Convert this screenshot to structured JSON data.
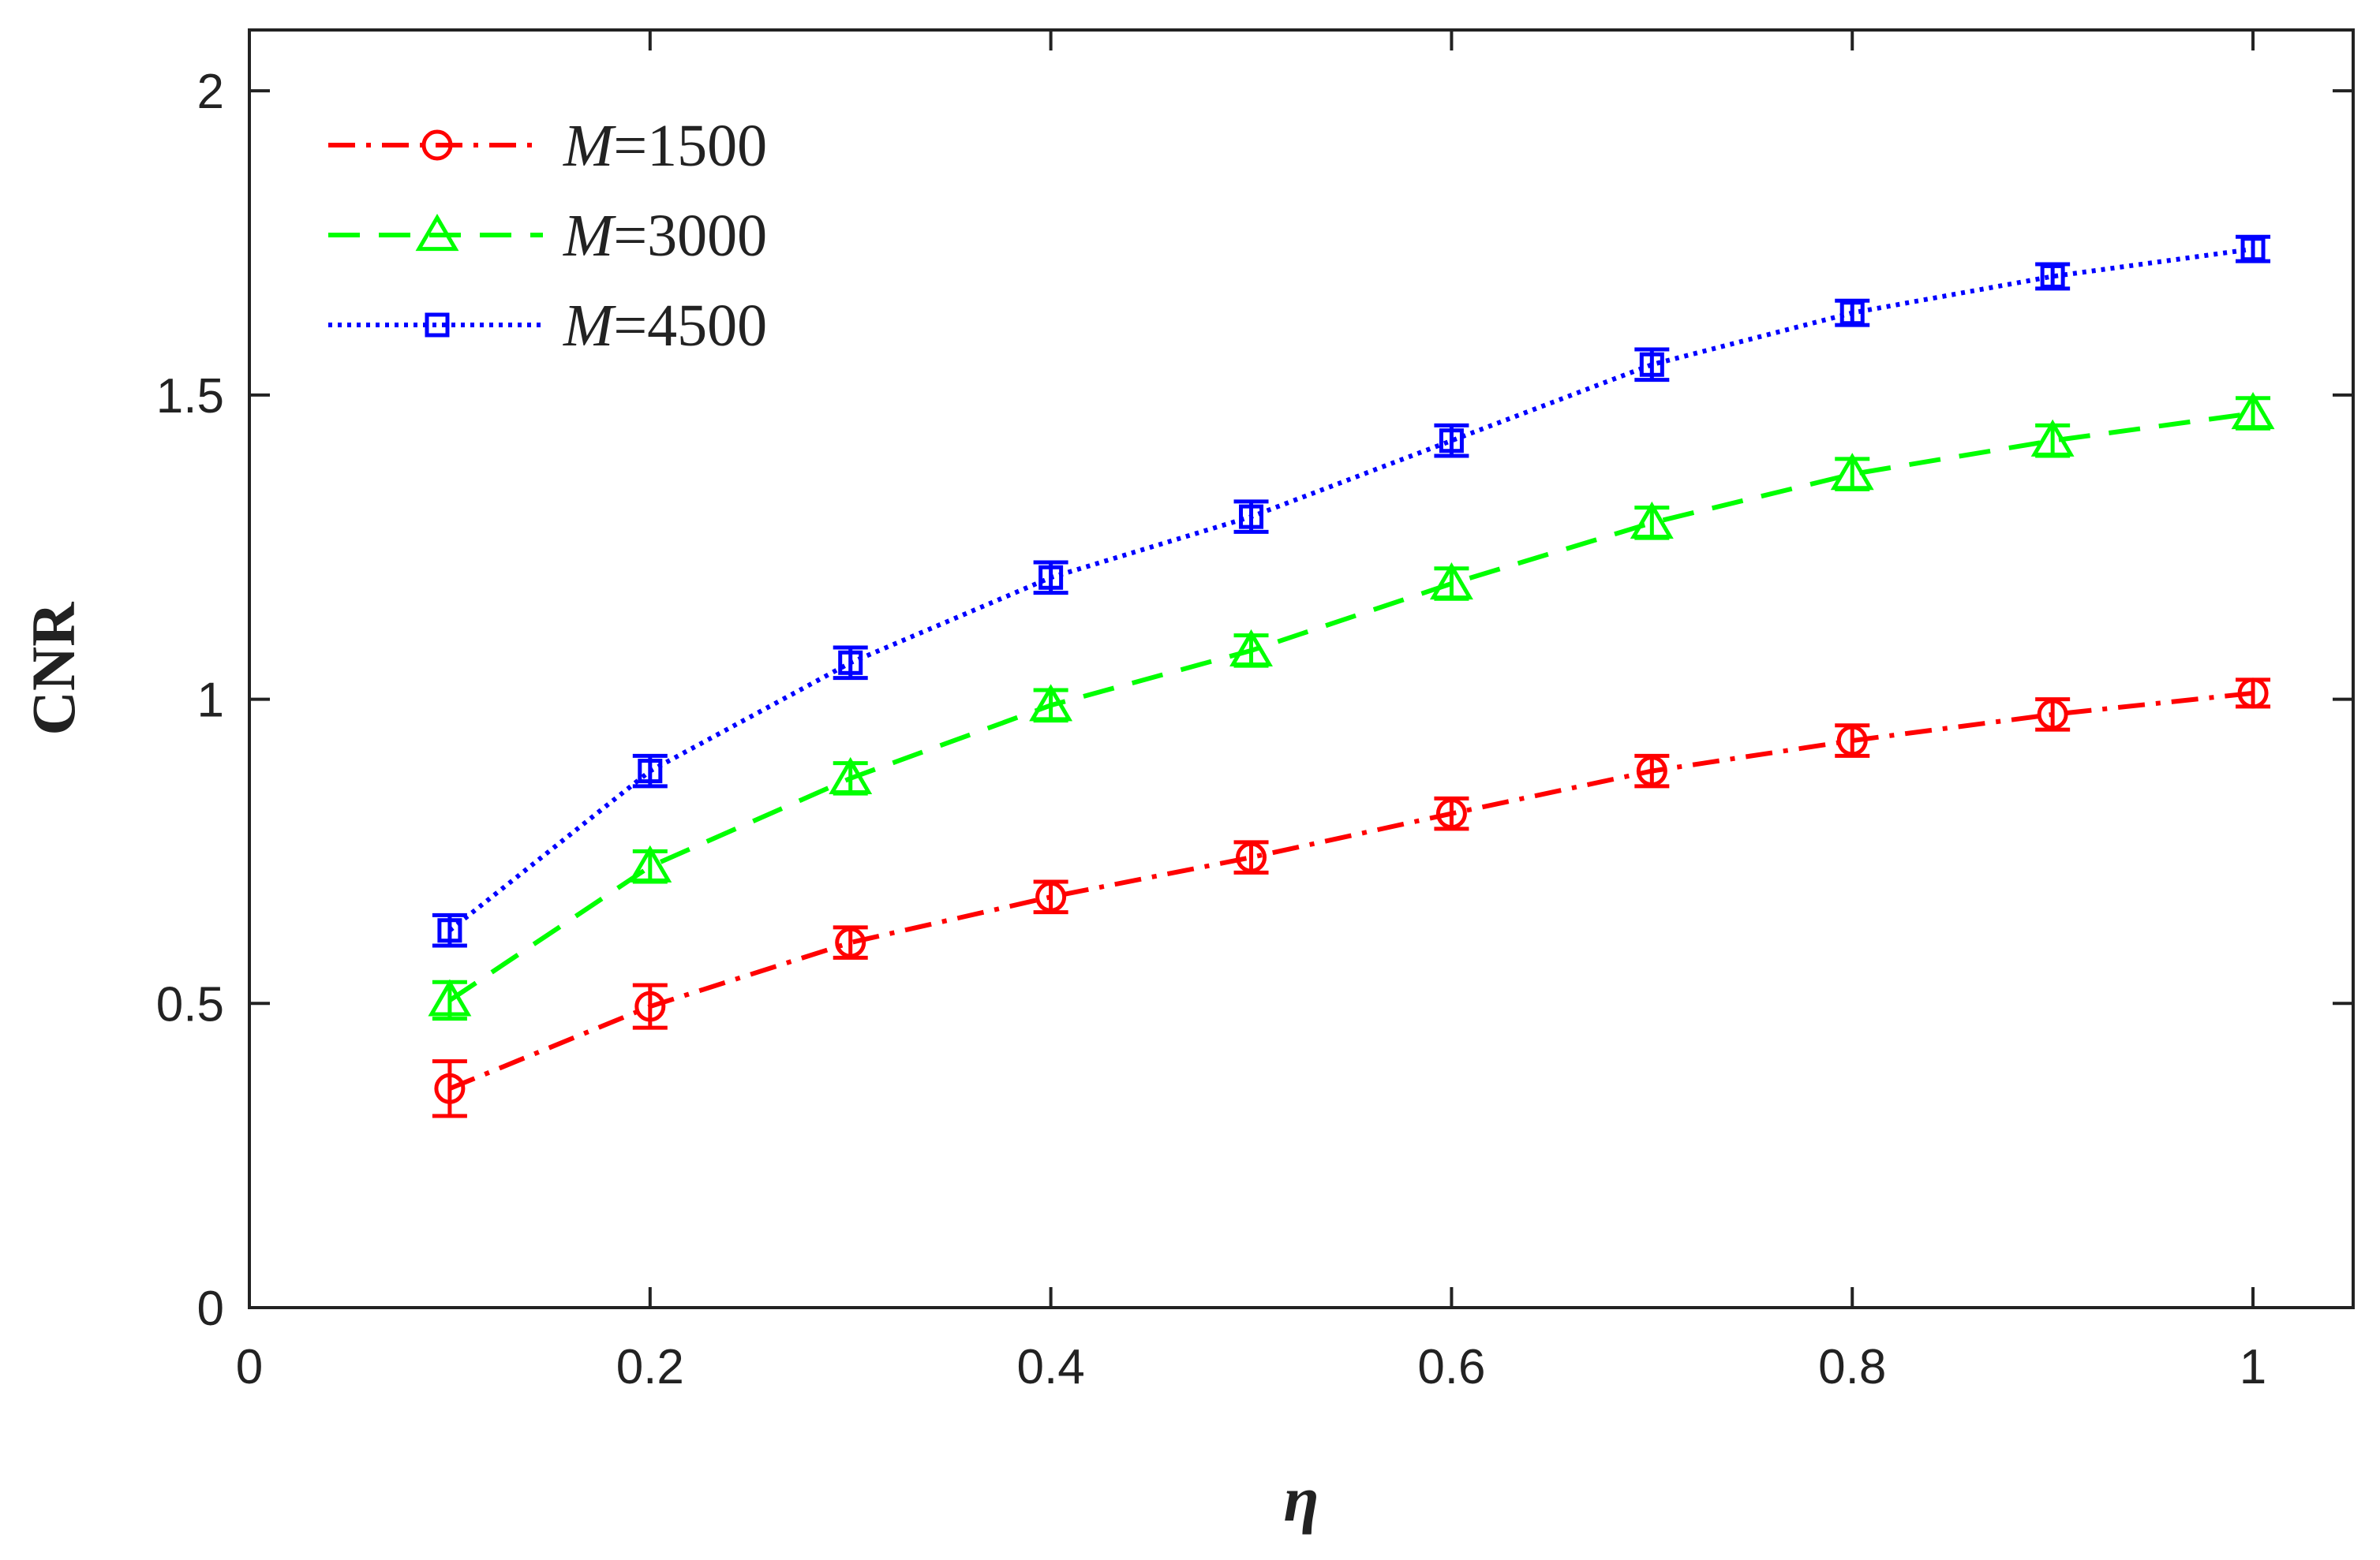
{
  "chart_data": {
    "type": "line",
    "title": "",
    "xlabel": "η",
    "ylabel": "CNR",
    "xlim": [
      0,
      1.05
    ],
    "ylim": [
      0,
      2.1
    ],
    "xticks": [
      0,
      0.2,
      0.4,
      0.6,
      0.8,
      1
    ],
    "xtick_labels": [
      "0",
      "0.2",
      "0.4",
      "0.6",
      "0.8",
      "1"
    ],
    "yticks": [
      0,
      0.5,
      1,
      1.5,
      2
    ],
    "ytick_labels": [
      "0",
      "0.5",
      "1",
      "1.5",
      "2"
    ],
    "grid": false,
    "legend_position": "top-left",
    "x": [
      0.1,
      0.2,
      0.3,
      0.4,
      0.5,
      0.6,
      0.7,
      0.8,
      0.9,
      1.0
    ],
    "series": [
      {
        "name": "M=1500",
        "legend_var": "M",
        "legend_value": "=1500",
        "color": "#ff0000",
        "line_style": "dash-dot",
        "marker": "circle",
        "values": [
          0.36,
          0.495,
          0.6,
          0.675,
          0.74,
          0.812,
          0.882,
          0.932,
          0.975,
          1.01
        ],
        "errors": [
          0.045,
          0.035,
          0.025,
          0.025,
          0.025,
          0.025,
          0.025,
          0.025,
          0.025,
          0.022
        ]
      },
      {
        "name": "M=3000",
        "legend_var": "M",
        "legend_value": "=3000",
        "color": "#00ff00",
        "line_style": "dashed",
        "marker": "triangle",
        "values": [
          0.505,
          0.725,
          0.87,
          0.99,
          1.08,
          1.19,
          1.29,
          1.37,
          1.425,
          1.47
        ],
        "errors": [
          0.03,
          0.025,
          0.025,
          0.025,
          0.025,
          0.025,
          0.025,
          0.025,
          0.025,
          0.025
        ]
      },
      {
        "name": "M=4500",
        "legend_var": "M",
        "legend_value": "=4500",
        "color": "#0000ff",
        "line_style": "dotted",
        "marker": "square",
        "values": [
          0.62,
          0.882,
          1.06,
          1.2,
          1.3,
          1.425,
          1.55,
          1.635,
          1.695,
          1.74
        ],
        "errors": [
          0.025,
          0.025,
          0.025,
          0.025,
          0.025,
          0.025,
          0.025,
          0.02,
          0.02,
          0.02
        ]
      }
    ]
  }
}
